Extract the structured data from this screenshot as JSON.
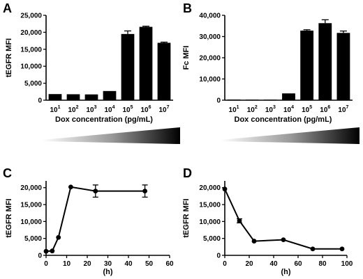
{
  "panels": {
    "A": {
      "letter": "A"
    },
    "B": {
      "letter": "B"
    },
    "C": {
      "letter": "C"
    },
    "D": {
      "letter": "D"
    }
  },
  "chart_data": [
    {
      "id": "A",
      "type": "bar",
      "title": "",
      "ylabel": "tEGFR MFI",
      "xlabel": "Dox concentration (pg/mL)",
      "categories": [
        {
          "base": "10",
          "exp": "1"
        },
        {
          "base": "10",
          "exp": "2"
        },
        {
          "base": "10",
          "exp": "3"
        },
        {
          "base": "10",
          "exp": "4"
        },
        {
          "base": "10",
          "exp": "5"
        },
        {
          "base": "10",
          "exp": "6"
        },
        {
          "base": "10",
          "exp": "7"
        }
      ],
      "values": [
        1800,
        1750,
        1700,
        2700,
        19500,
        21600,
        16900
      ],
      "errors": [
        0,
        0,
        0,
        0,
        900,
        200,
        200
      ],
      "ylim": [
        0,
        25000
      ],
      "yticks": [
        0,
        5000,
        10000,
        15000,
        20000,
        25000
      ],
      "ytick_labels": [
        "0",
        "5,000",
        "10,000",
        "15,000",
        "20,000",
        "25,000"
      ],
      "gradient": true,
      "grid": false
    },
    {
      "id": "B",
      "type": "bar",
      "title": "",
      "ylabel": "Fc MFI",
      "xlabel": "Dox concentration (pg/mL)",
      "categories": [
        {
          "base": "10",
          "exp": "1"
        },
        {
          "base": "10",
          "exp": "2"
        },
        {
          "base": "10",
          "exp": "3"
        },
        {
          "base": "10",
          "exp": "4"
        },
        {
          "base": "10",
          "exp": "5"
        },
        {
          "base": "10",
          "exp": "6"
        },
        {
          "base": "10",
          "exp": "7"
        }
      ],
      "values": [
        300,
        250,
        250,
        3200,
        32800,
        36300,
        31700
      ],
      "errors": [
        0,
        0,
        0,
        0,
        400,
        1600,
        900
      ],
      "ylim": [
        0,
        40000
      ],
      "yticks": [
        0,
        10000,
        20000,
        30000,
        40000
      ],
      "ytick_labels": [
        "0",
        "10,000",
        "20,000",
        "30,000",
        "40,000"
      ],
      "gradient": true,
      "grid": false
    },
    {
      "id": "C",
      "type": "line",
      "title": "",
      "ylabel": "tEGFR MFI",
      "xlabel": "(h)",
      "x": [
        0,
        3,
        6,
        12,
        24,
        48
      ],
      "y": [
        1200,
        1300,
        5300,
        20200,
        19000,
        19000
      ],
      "errors": [
        0,
        0,
        0,
        0,
        1800,
        1800
      ],
      "xlim": [
        0,
        60
      ],
      "xticks": [
        0,
        10,
        20,
        30,
        40,
        50,
        60
      ],
      "ylim": [
        0,
        22000
      ],
      "yticks": [
        0,
        5000,
        10000,
        15000,
        20000
      ],
      "ytick_labels": [
        "0",
        "5,000",
        "10,000",
        "15,000",
        "20,000"
      ],
      "grid": false
    },
    {
      "id": "D",
      "type": "line",
      "title": "",
      "ylabel": "tEGFR MFI",
      "xlabel": "(h)",
      "x": [
        0,
        12,
        24,
        48,
        72,
        96
      ],
      "y": [
        19600,
        10200,
        4200,
        4600,
        1900,
        1900
      ],
      "errors": [
        0,
        600,
        0,
        0,
        0,
        0
      ],
      "xlim": [
        0,
        100
      ],
      "xticks": [
        0,
        20,
        40,
        60,
        80,
        100
      ],
      "ylim": [
        0,
        22000
      ],
      "yticks": [
        0,
        5000,
        10000,
        15000,
        20000
      ],
      "ytick_labels": [
        "0",
        "5,000",
        "10,000",
        "15,000",
        "20,000"
      ],
      "grid": false
    }
  ]
}
